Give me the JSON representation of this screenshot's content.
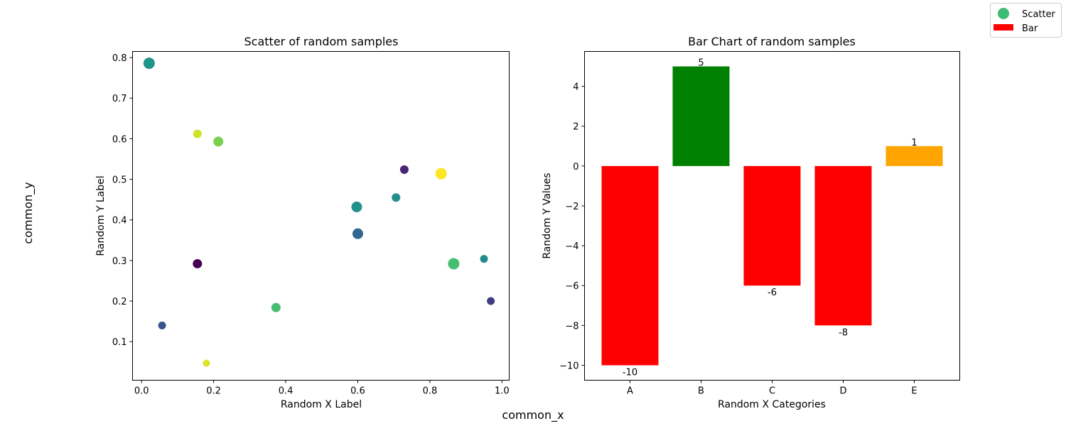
{
  "figure": {
    "common_x": "common_x",
    "common_y": "common_y",
    "legend": {
      "placement": "upper-right",
      "items": [
        {
          "label": "Scatter",
          "kind": "marker",
          "color": "#3fbc73"
        },
        {
          "label": "Bar",
          "kind": "patch",
          "color": "#ff0000"
        }
      ]
    }
  },
  "chart_data": [
    {
      "type": "scatter",
      "title": "Scatter of random samples",
      "xlabel": "Random X Label",
      "ylabel": "Random Y Label",
      "xlim": [
        -0.025,
        1.02
      ],
      "ylim": [
        0.005,
        0.815
      ],
      "xticks": [
        0.0,
        0.2,
        0.4,
        0.6,
        0.8,
        1.0
      ],
      "xtick_labels": [
        "0.0",
        "0.2",
        "0.4",
        "0.6",
        "0.8",
        "1.0"
      ],
      "yticks": [
        0.1,
        0.2,
        0.3,
        0.4,
        0.5,
        0.6,
        0.7,
        0.8
      ],
      "ytick_labels": [
        "0.1",
        "0.2",
        "0.3",
        "0.4",
        "0.5",
        "0.6",
        "0.7",
        "0.8"
      ],
      "grid": false,
      "colormap": "viridis",
      "points": [
        {
          "x": 0.021,
          "y": 0.786,
          "c": 0.52,
          "size": 16
        },
        {
          "x": 0.155,
          "y": 0.612,
          "c": 0.93,
          "size": 12
        },
        {
          "x": 0.213,
          "y": 0.593,
          "c": 0.8,
          "size": 14
        },
        {
          "x": 0.155,
          "y": 0.292,
          "c": 0.0,
          "size": 13
        },
        {
          "x": 0.057,
          "y": 0.14,
          "c": 0.26,
          "size": 11
        },
        {
          "x": 0.18,
          "y": 0.047,
          "c": 0.95,
          "size": 10
        },
        {
          "x": 0.373,
          "y": 0.184,
          "c": 0.7,
          "size": 13
        },
        {
          "x": 0.597,
          "y": 0.432,
          "c": 0.5,
          "size": 15
        },
        {
          "x": 0.6,
          "y": 0.366,
          "c": 0.33,
          "size": 15
        },
        {
          "x": 0.706,
          "y": 0.455,
          "c": 0.5,
          "size": 12
        },
        {
          "x": 0.729,
          "y": 0.524,
          "c": 0.1,
          "size": 12
        },
        {
          "x": 0.831,
          "y": 0.514,
          "c": 1.0,
          "size": 16
        },
        {
          "x": 0.866,
          "y": 0.292,
          "c": 0.7,
          "size": 16
        },
        {
          "x": 0.95,
          "y": 0.304,
          "c": 0.48,
          "size": 11
        },
        {
          "x": 0.969,
          "y": 0.2,
          "c": 0.18,
          "size": 11
        }
      ]
    },
    {
      "type": "bar",
      "title": "Bar Chart of random samples",
      "xlabel": "Random X Categories",
      "ylabel": "Random Y Values",
      "categories": [
        "A",
        "B",
        "C",
        "D",
        "E"
      ],
      "values": [
        -10,
        5,
        -6,
        -8,
        1
      ],
      "colors": [
        "#ff0000",
        "#008000",
        "#ff0000",
        "#ff0000",
        "#ffa500"
      ],
      "ylim": [
        -10.75,
        5.75
      ],
      "yticks": [
        -10,
        -8,
        -6,
        -4,
        -2,
        0,
        2,
        4
      ],
      "ytick_labels": [
        "−10",
        "−8",
        "−6",
        "−4",
        "−2",
        "0",
        "2",
        "4"
      ],
      "data_labels": [
        "-10",
        "5",
        "-6",
        "-8",
        "1"
      ],
      "grid": false
    }
  ]
}
